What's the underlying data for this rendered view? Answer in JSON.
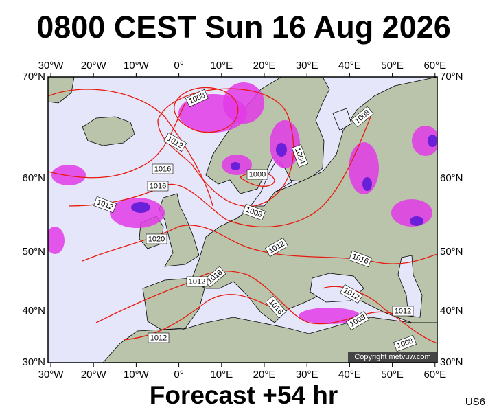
{
  "title": "0800 CEST Sun 16 Aug 2026",
  "subtitle": "Forecast +54 hr",
  "code": "US6",
  "copyright": "Copyright metvuw.com",
  "longitude_labels": [
    "30°W",
    "20°W",
    "10°W",
    "0°",
    "10°E",
    "20°E",
    "30°E",
    "40°E",
    "50°E",
    "60°E"
  ],
  "latitude_labels": [
    "70°N",
    "60°N",
    "50°N",
    "40°N",
    "30°N"
  ],
  "isobar_labels": [
    "1008",
    "1012",
    "1016",
    "1016",
    "1012",
    "1020",
    "1000",
    "1008",
    "1004",
    "1008",
    "1012",
    "1016",
    "1016",
    "1012",
    "1016",
    "1012",
    "1008",
    "1012",
    "1012",
    "1008"
  ]
}
